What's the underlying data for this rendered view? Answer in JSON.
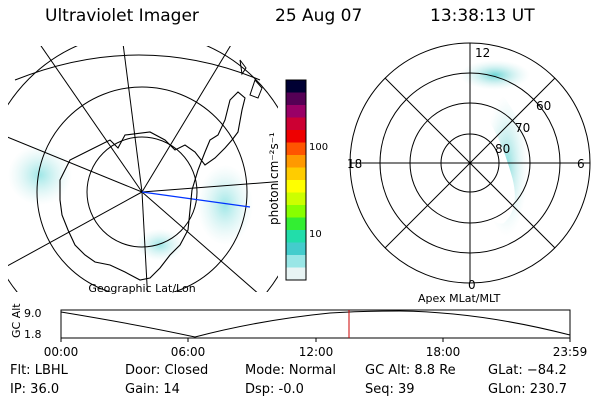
{
  "header": {
    "instrument": "Ultraviolet Imager",
    "date": "25 Aug 07",
    "time": "13:38:13 UT"
  },
  "colorbar": {
    "unit_label": "photon cm⁻²s⁻¹",
    "ticks": [
      "100",
      "10"
    ],
    "colors": [
      "#000033",
      "#550055",
      "#990066",
      "#cc0033",
      "#ee0000",
      "#ff5500",
      "#ff9900",
      "#ffcc00",
      "#ffff00",
      "#ccff00",
      "#88ff00",
      "#33ee33",
      "#22ddaa",
      "#44cccc",
      "#99e6e6",
      "#e8f4f4"
    ]
  },
  "left_panel": {
    "caption": "Geographic Lat/Lon"
  },
  "right_panel": {
    "caption": "Apex MLat/MLT",
    "mlt_labels": {
      "top": "12",
      "bottom": "0",
      "left": "18",
      "right": "6"
    },
    "lat_labels": [
      "60",
      "70",
      "80"
    ]
  },
  "altitude_plot": {
    "ylabel": "GC Alt",
    "yticks": [
      "9.0",
      "1.8"
    ],
    "xticks": [
      "00:00",
      "06:00",
      "12:00",
      "18:00",
      "23:59"
    ]
  },
  "status": {
    "filter": "Flt: LBHL",
    "ip": "IP: 36.0",
    "door": "Door: Closed",
    "gain": "Gain: 14",
    "mode": "Mode: Normal",
    "dsp": "Dsp:    -0.0",
    "gc_alt": "GC Alt: 8.8 Re",
    "seq": "Seq: 39",
    "glat": "GLat: −84.2",
    "glon": "GLon: 230.7"
  }
}
